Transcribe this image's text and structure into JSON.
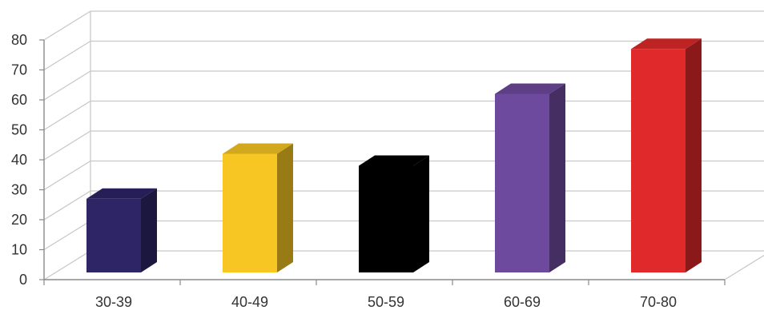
{
  "chart_data": {
    "type": "bar",
    "categories": [
      "30-39",
      "40-49",
      "50-59",
      "60-69",
      "70-80"
    ],
    "values": [
      27,
      42,
      38,
      62,
      77
    ],
    "bar_colors": [
      "#2d2566",
      "#f7c623",
      "#000000",
      "#6e4a9e",
      "#e0292a"
    ],
    "y_ticks": [
      "0",
      "10",
      "20",
      "30",
      "40",
      "50",
      "60",
      "70",
      "80"
    ],
    "ylim": [
      0,
      80
    ],
    "grid": true,
    "style": "3d"
  }
}
